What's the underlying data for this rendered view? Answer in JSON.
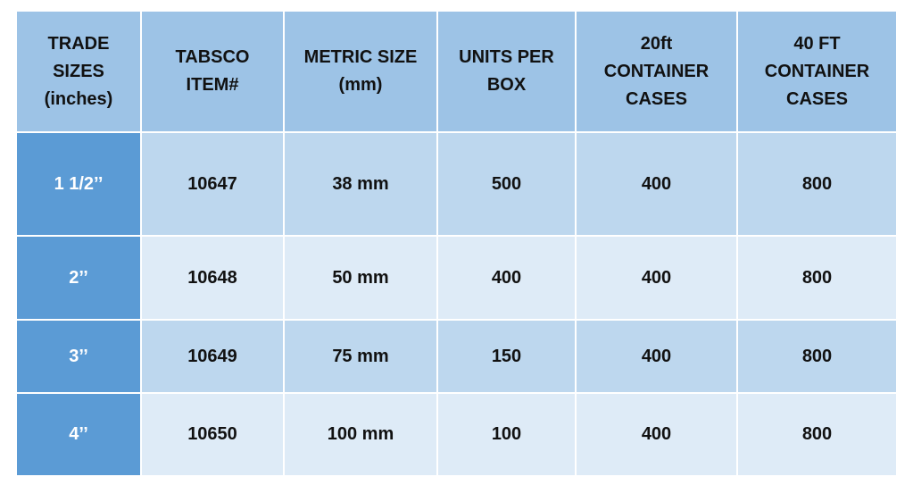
{
  "table": {
    "headers": [
      [
        "TRADE",
        "SIZES",
        "(inches)"
      ],
      [
        "TABSCO",
        "ITEM#"
      ],
      [
        "METRIC SIZE",
        "(mm)"
      ],
      [
        "UNITS PER",
        "BOX"
      ],
      [
        "20ft",
        "CONTAINER",
        "CASES"
      ],
      [
        "40 FT",
        "CONTAINER",
        "CASES"
      ]
    ],
    "rows": [
      [
        "1 1/2’’",
        10647,
        "38 mm",
        500,
        400,
        800
      ],
      [
        "2’’",
        10648,
        "50 mm",
        400,
        400,
        800
      ],
      [
        "3’’",
        10649,
        "75 mm",
        150,
        400,
        800
      ],
      [
        "4’’",
        10650,
        "100 mm",
        100,
        400,
        800
      ]
    ]
  }
}
